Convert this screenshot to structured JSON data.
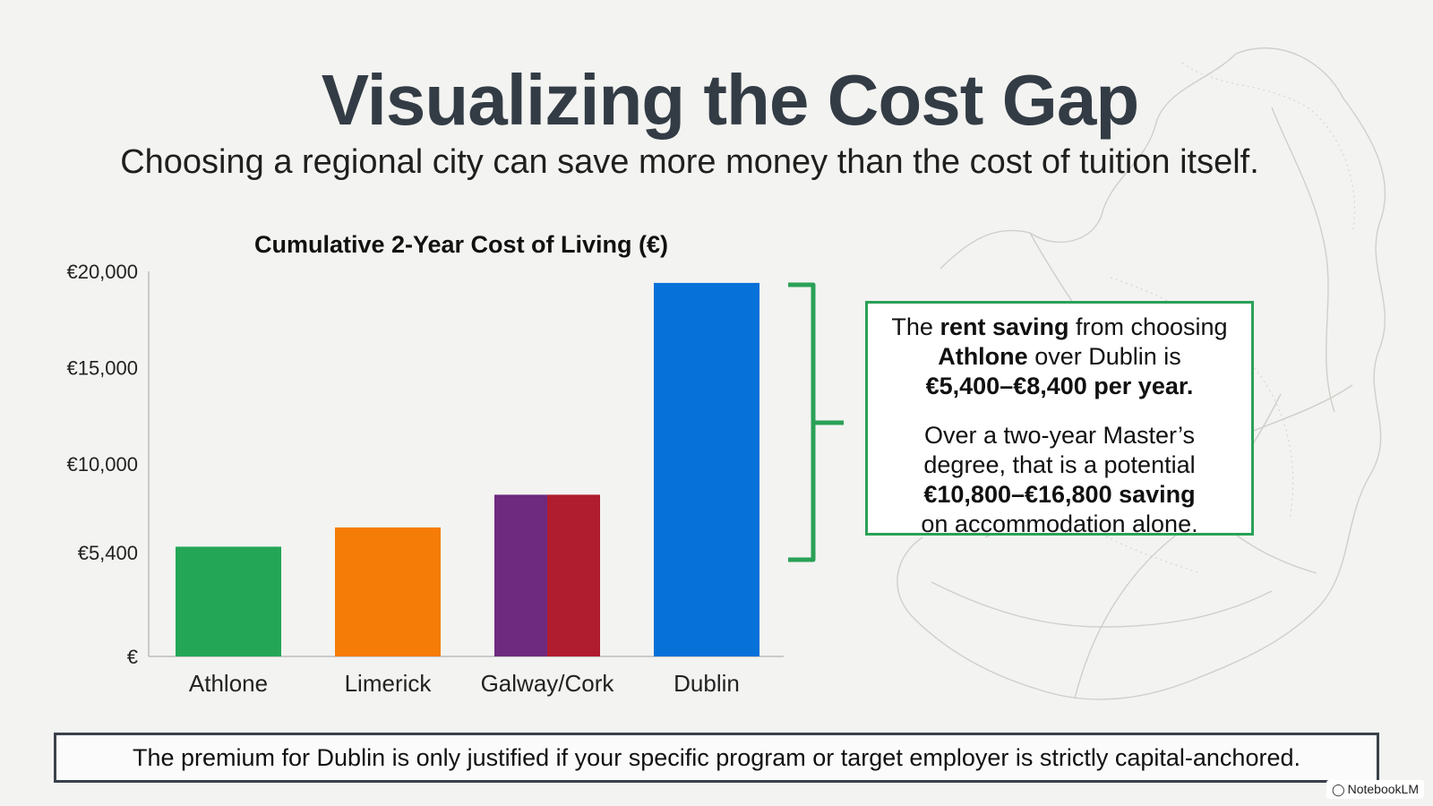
{
  "header": {
    "title": "Visualizing the Cost Gap",
    "subtitle": "Choosing a regional city can save more money than the cost of tuition itself."
  },
  "chart_data": {
    "type": "bar",
    "title": "Cumulative 2-Year Cost of Living (€)",
    "xlabel": "",
    "ylabel": "",
    "categories": [
      "Athlone",
      "Limerick",
      "Galway/Cork",
      "Dublin"
    ],
    "values": [
      5700,
      6700,
      8400,
      19400
    ],
    "ylim": [
      0,
      20000
    ],
    "y_ticks": [
      {
        "value": 0,
        "label": "€"
      },
      {
        "value": 5400,
        "label": "€5,400"
      },
      {
        "value": 10000,
        "label": "€10,000"
      },
      {
        "value": 15000,
        "label": "€15,000"
      },
      {
        "value": 20000,
        "label": "€20,000"
      }
    ],
    "bar_colors": [
      [
        "#23a656"
      ],
      [
        "#f47c07"
      ],
      [
        "#6e2a7e",
        "#b01d2e"
      ],
      [
        "#0671d8"
      ]
    ],
    "grid": false,
    "legend": "none"
  },
  "callout": {
    "line1_pre": "The ",
    "line1_bold": "rent saving",
    "line1_post": " from choosing",
    "line2_bold": "Athlone",
    "line2_post": " over Dublin is",
    "line3_bold": "€5,400–€8,400 per year.",
    "line4": "Over a two-year Master’s",
    "line5": "degree, that is a potential",
    "line6_bold": "€10,800–€16,800 saving",
    "line7": "on accommodation alone."
  },
  "footer": {
    "text": "The premium for Dublin is only justified if your specific program or target employer is strictly capital-anchored."
  },
  "brand": {
    "label": "NotebookLM",
    "icon": "notebooklm-logo-icon"
  },
  "colors": {
    "bracket": "#2aa157",
    "title": "#333c45",
    "callout_border": "#2aa157"
  }
}
